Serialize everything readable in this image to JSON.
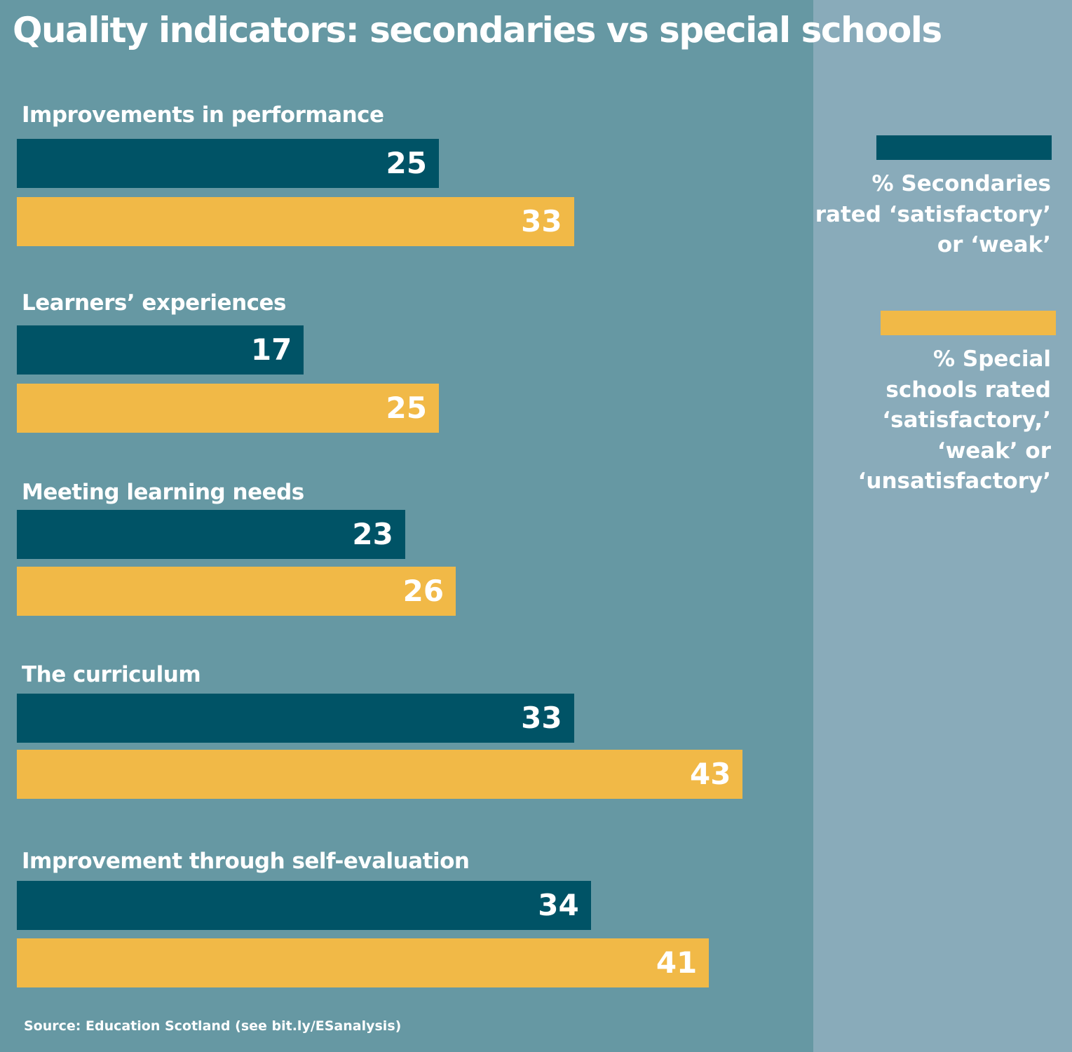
{
  "chart_data": {
    "type": "bar",
    "orientation": "horizontal",
    "title": "Quality indicators: secondaries vs special schools",
    "categories": [
      "Improvements in performance",
      "Learners’ experiences",
      "Meeting learning needs",
      "The curriculum",
      "Improvement through self-evaluation"
    ],
    "series": [
      {
        "name": "% Secondaries rated ‘satisfactory’ or ‘weak’",
        "color": "#005366",
        "values": [
          25,
          17,
          23,
          33,
          34
        ]
      },
      {
        "name": "% Special schools rated ‘satisfactory,’ ‘weak’ or ‘unsatisfactory’",
        "color": "#f1b947",
        "values": [
          33,
          25,
          26,
          43,
          41
        ]
      }
    ],
    "xlim": [
      0,
      48
    ],
    "grid": false,
    "legend_position": "right",
    "source": "Source: Education Scotland (see bit.ly/ESanalysis)"
  },
  "legend": {
    "secondaries_text": "% Secondaries\nrated ‘satisfactory’\nor ‘weak’",
    "special_text": "% Special\nschools rated\n‘satisfactory,’\n‘weak’ or\n‘unsatisfactory’"
  },
  "colors": {
    "background": "#6698a3",
    "panel": "#89abba"
  }
}
